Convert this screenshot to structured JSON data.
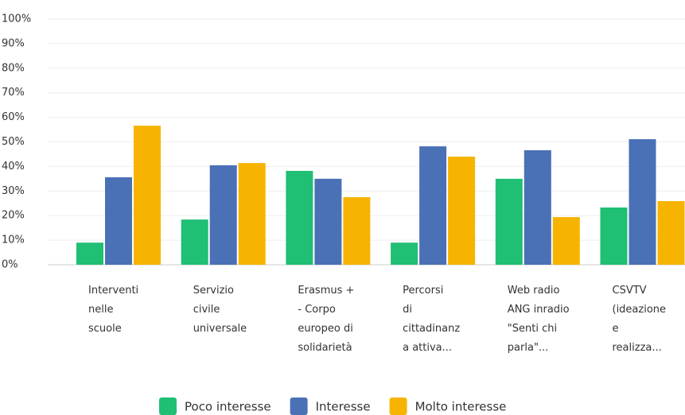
{
  "chart_data": {
    "type": "bar",
    "categories": [
      "Interventi\nnelle\nscuole",
      "Servizio\ncivile\nuniversale",
      "Erasmus +\n- Corpo\neuropeo di\nsolidarietà",
      "Percorsi\ndi\ncittadinanz\na attiva...",
      "Web radio\nANG inradio\n\"Senti chi\nparla\"...",
      "CSVTV\n(ideazione\ne\nrealizza..."
    ],
    "series": [
      {
        "name": "Poco interesse",
        "color": "#1fbf74",
        "values": [
          9,
          18.4,
          38.2,
          9,
          35,
          23.3
        ]
      },
      {
        "name": "Interesse",
        "color": "#4a70b6",
        "values": [
          35.6,
          40.5,
          35,
          48.2,
          46.6,
          51.1
        ]
      },
      {
        "name": "Molto interesse",
        "color": "#f6b400",
        "values": [
          56.6,
          41.4,
          27.5,
          44,
          19.4,
          25.9
        ]
      }
    ],
    "ylim": [
      0,
      100
    ],
    "yticks": [
      {
        "value": 0,
        "label": "0%"
      },
      {
        "value": 10,
        "label": "10%"
      },
      {
        "value": 20,
        "label": "20%"
      },
      {
        "value": 30,
        "label": "30%"
      },
      {
        "value": 40,
        "label": "40%"
      },
      {
        "value": 50,
        "label": "50%"
      },
      {
        "value": 60,
        "label": "60%"
      },
      {
        "value": 70,
        "label": "70%"
      },
      {
        "value": 80,
        "label": "80%"
      },
      {
        "value": 90,
        "label": "90%"
      },
      {
        "value": 100,
        "label": "100%"
      }
    ],
    "grid": true
  }
}
